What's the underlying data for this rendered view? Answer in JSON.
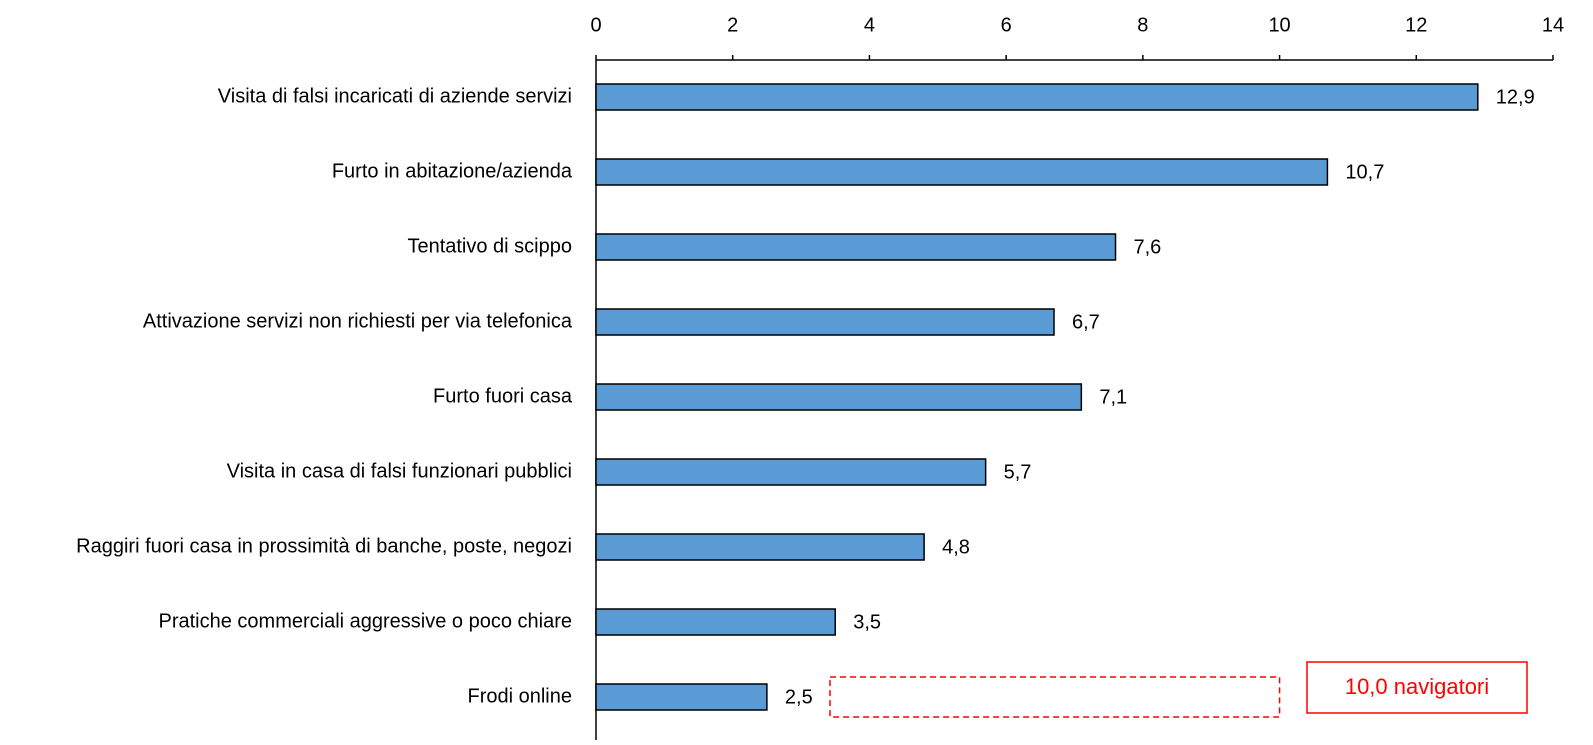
{
  "chart_data": {
    "type": "barh",
    "categories": [
      "Visita di falsi incaricati di aziende servizi",
      "Furto in abitazione/azienda",
      "Tentativo di scippo",
      "Attivazione servizi non richiesti per via telefonica",
      "Furto fuori casa",
      "Visita in casa di falsi funzionari pubblici",
      "Raggiri fuori casa in prossimità di banche, poste, negozi",
      "Pratiche commerciali aggressive o poco chiare",
      "Frodi online"
    ],
    "values": [
      12.9,
      10.7,
      7.6,
      6.7,
      7.1,
      5.7,
      4.8,
      3.5,
      2.5
    ],
    "value_labels": [
      "12,9",
      "10,7",
      "7,6",
      "6,7",
      "7,1",
      "5,7",
      "4,8",
      "3,5",
      "2,5"
    ],
    "color": "#5b9bd5",
    "xlim": [
      0,
      14
    ],
    "xticks": [
      0,
      2,
      4,
      6,
      8,
      10,
      12,
      14
    ],
    "annotation": {
      "text": "10,0 navigatori",
      "value": 10.0,
      "color": "#ff0000"
    }
  }
}
